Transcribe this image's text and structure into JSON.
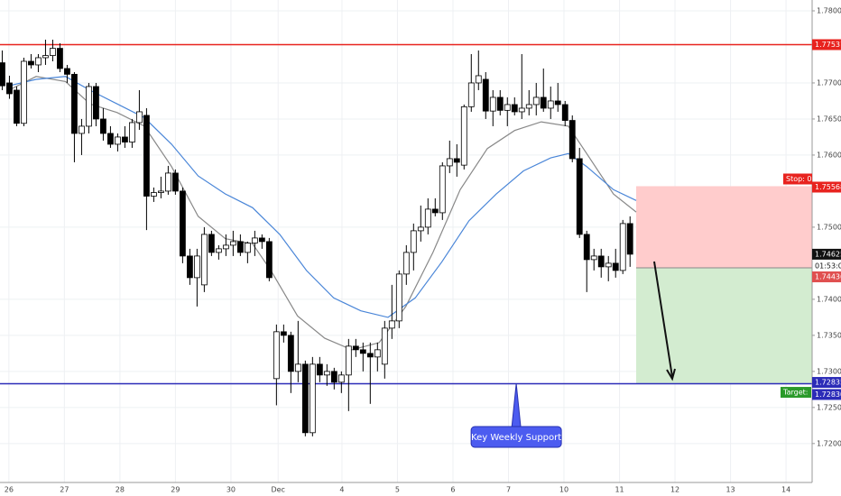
{
  "chart_data": {
    "type": "candlestick",
    "up_color": "#ffffff",
    "down_color": "#000000",
    "grid": true,
    "xlim": [
      -0.16,
      14.47
    ],
    "ylim": [
      1.7146,
      1.7815
    ],
    "xticks": [
      {
        "value": 0,
        "label": "26"
      },
      {
        "value": 1,
        "label": "27"
      },
      {
        "value": 2,
        "label": "28"
      },
      {
        "value": 3,
        "label": "29"
      },
      {
        "value": 4,
        "label": "30"
      },
      {
        "value": 4.85,
        "label": "Dec"
      },
      {
        "value": 6,
        "label": "4"
      },
      {
        "value": 7,
        "label": "5"
      },
      {
        "value": 8,
        "label": "6"
      },
      {
        "value": 9,
        "label": "7"
      },
      {
        "value": 10,
        "label": "10"
      },
      {
        "value": 11,
        "label": "11"
      },
      {
        "value": 12,
        "label": "12"
      },
      {
        "value": 13,
        "label": "13"
      },
      {
        "value": 14,
        "label": "14"
      }
    ],
    "yticks": [
      {
        "value": 1.78,
        "label": "1.78000"
      },
      {
        "value": 1.77,
        "label": "1.77000"
      },
      {
        "value": 1.765,
        "label": "1.76500"
      },
      {
        "value": 1.76,
        "label": "1.76000"
      },
      {
        "value": 1.75,
        "label": "1.75000"
      },
      {
        "value": 1.74,
        "label": "1.74000"
      },
      {
        "value": 1.735,
        "label": "1.73500"
      },
      {
        "value": 1.73,
        "label": "1.73000"
      },
      {
        "value": 1.725,
        "label": "1.72500"
      },
      {
        "value": 1.72,
        "label": "1.72000"
      }
    ],
    "x": [
      -0.12,
      0.01,
      0.14,
      0.27,
      0.4,
      0.53,
      0.66,
      0.79,
      0.92,
      1.05,
      1.18,
      1.31,
      1.44,
      1.57,
      1.7,
      1.83,
      1.96,
      2.09,
      2.22,
      2.35,
      2.48,
      2.61,
      2.74,
      2.87,
      3.0,
      3.13,
      3.26,
      3.39,
      3.52,
      3.65,
      3.78,
      3.91,
      4.04,
      4.17,
      4.3,
      4.43,
      4.56,
      4.69,
      4.82,
      4.95,
      5.08,
      5.21,
      5.34,
      5.47,
      5.6,
      5.73,
      5.86,
      5.99,
      6.12,
      6.25,
      6.38,
      6.51,
      6.64,
      6.77,
      6.9,
      7.03,
      7.16,
      7.29,
      7.42,
      7.55,
      7.68,
      7.81,
      7.94,
      8.07,
      8.2,
      8.33,
      8.46,
      8.59,
      8.72,
      8.85,
      8.98,
      9.11,
      9.24,
      9.37,
      9.5,
      9.63,
      9.76,
      9.89,
      10.02,
      10.15,
      10.28,
      10.41,
      10.54,
      10.67,
      10.8,
      10.93,
      11.06,
      11.19
    ],
    "open": [
      1.7728,
      1.77,
      1.769,
      1.7644,
      1.773,
      1.7725,
      1.7735,
      1.7738,
      1.7748,
      1.772,
      1.7712,
      1.763,
      1.764,
      1.7695,
      1.765,
      1.763,
      1.7615,
      1.7625,
      1.7618,
      1.7645,
      1.7655,
      1.7543,
      1.7548,
      1.755,
      1.7575,
      1.755,
      1.746,
      1.743,
      1.742,
      1.749,
      1.7465,
      1.747,
      1.7475,
      1.748,
      1.7465,
      1.7478,
      1.7485,
      1.748,
      1.729,
      1.7355,
      1.735,
      1.73,
      1.731,
      1.7215,
      1.731,
      1.7295,
      1.73,
      1.7285,
      1.7295,
      1.7335,
      1.733,
      1.7325,
      1.732,
      1.731,
      1.736,
      1.737,
      1.7435,
      1.7465,
      1.7495,
      1.75,
      1.7525,
      1.752,
      1.7585,
      1.7595,
      1.7586,
      1.7667,
      1.77,
      1.7705,
      1.7661,
      1.768,
      1.7662,
      1.767,
      1.766,
      1.7665,
      1.767,
      1.768,
      1.7665,
      1.7675,
      1.767,
      1.7648,
      1.7595,
      1.749,
      1.7455,
      1.746,
      1.7445,
      1.745,
      1.744,
      1.7505
    ],
    "high": [
      1.7745,
      1.771,
      1.7695,
      1.7735,
      1.774,
      1.774,
      1.776,
      1.776,
      1.7755,
      1.7725,
      1.7715,
      1.765,
      1.77,
      1.77,
      1.7665,
      1.764,
      1.763,
      1.764,
      1.765,
      1.769,
      1.7665,
      1.7555,
      1.757,
      1.7585,
      1.758,
      1.7555,
      1.747,
      1.747,
      1.75,
      1.7495,
      1.7475,
      1.749,
      1.7495,
      1.749,
      1.748,
      1.7495,
      1.749,
      1.7485,
      1.7365,
      1.7365,
      1.7355,
      1.737,
      1.7315,
      1.732,
      1.732,
      1.731,
      1.7305,
      1.73,
      1.7345,
      1.7345,
      1.734,
      1.734,
      1.734,
      1.737,
      1.742,
      1.744,
      1.7475,
      1.7505,
      1.753,
      1.754,
      1.754,
      1.759,
      1.762,
      1.7615,
      1.767,
      1.774,
      1.7745,
      1.7715,
      1.769,
      1.769,
      1.768,
      1.768,
      1.774,
      1.769,
      1.77,
      1.772,
      1.7695,
      1.77,
      1.7675,
      1.7655,
      1.761,
      1.7495,
      1.747,
      1.747,
      1.746,
      1.747,
      1.751,
      1.7515
    ],
    "low": [
      1.769,
      1.7678,
      1.764,
      1.764,
      1.772,
      1.7715,
      1.7725,
      1.773,
      1.7715,
      1.77,
      1.759,
      1.76,
      1.763,
      1.764,
      1.762,
      1.761,
      1.7605,
      1.761,
      1.761,
      1.7635,
      1.7496,
      1.7535,
      1.754,
      1.7545,
      1.7545,
      1.745,
      1.742,
      1.739,
      1.741,
      1.746,
      1.7455,
      1.746,
      1.746,
      1.746,
      1.745,
      1.746,
      1.747,
      1.7425,
      1.7253,
      1.734,
      1.727,
      1.7285,
      1.721,
      1.721,
      1.7285,
      1.728,
      1.7275,
      1.727,
      1.7245,
      1.732,
      1.73,
      1.7255,
      1.73,
      1.729,
      1.7345,
      1.736,
      1.742,
      1.744,
      1.748,
      1.749,
      1.7515,
      1.751,
      1.7575,
      1.757,
      1.758,
      1.766,
      1.769,
      1.765,
      1.764,
      1.7655,
      1.764,
      1.7655,
      1.765,
      1.7655,
      1.7655,
      1.766,
      1.765,
      1.766,
      1.764,
      1.759,
      1.7485,
      1.741,
      1.744,
      1.743,
      1.7425,
      1.743,
      1.7435,
      1.7445
    ],
    "close": [
      1.7696,
      1.7685,
      1.7644,
      1.773,
      1.7725,
      1.7735,
      1.7738,
      1.7748,
      1.772,
      1.7712,
      1.763,
      1.764,
      1.7695,
      1.765,
      1.763,
      1.7615,
      1.7625,
      1.7618,
      1.7645,
      1.766,
      1.7543,
      1.7548,
      1.755,
      1.7575,
      1.755,
      1.746,
      1.743,
      1.746,
      1.749,
      1.7465,
      1.747,
      1.7475,
      1.748,
      1.7465,
      1.7478,
      1.7485,
      1.748,
      1.743,
      1.7355,
      1.735,
      1.73,
      1.731,
      1.7215,
      1.731,
      1.7295,
      1.73,
      1.7285,
      1.7295,
      1.7335,
      1.733,
      1.7325,
      1.732,
      1.733,
      1.736,
      1.737,
      1.7435,
      1.7465,
      1.7495,
      1.75,
      1.7525,
      1.752,
      1.7585,
      1.7595,
      1.759,
      1.7667,
      1.77,
      1.771,
      1.7661,
      1.768,
      1.7662,
      1.767,
      1.766,
      1.7665,
      1.767,
      1.768,
      1.7665,
      1.7675,
      1.767,
      1.7648,
      1.7595,
      1.749,
      1.7455,
      1.746,
      1.7445,
      1.745,
      1.744,
      1.7505,
      1.74625
    ],
    "moving_averages": [
      {
        "color": "#888888",
        "x": [
          0.0,
          0.49,
          1.02,
          1.46,
          1.95,
          2.44,
          2.93,
          3.41,
          3.9,
          4.39,
          4.72,
          5.2,
          5.69,
          6.18,
          6.67,
          7.15,
          7.64,
          8.13,
          8.62,
          9.11,
          9.59,
          10.08,
          10.41,
          10.89,
          11.3
        ],
        "values": [
          1.769,
          1.7709,
          1.7702,
          1.7671,
          1.7659,
          1.764,
          1.7584,
          1.7515,
          1.7484,
          1.7477,
          1.744,
          1.7377,
          1.7346,
          1.733,
          1.734,
          1.739,
          1.7465,
          1.7552,
          1.7609,
          1.7634,
          1.7646,
          1.764,
          1.7602,
          1.7546,
          1.7521
        ]
      },
      {
        "color": "#4a86d8",
        "x": [
          0.0,
          0.49,
          1.02,
          1.46,
          1.95,
          2.44,
          2.93,
          3.41,
          3.9,
          4.39,
          4.88,
          5.36,
          5.85,
          6.34,
          6.83,
          7.32,
          7.8,
          8.29,
          8.78,
          9.27,
          9.76,
          10.08,
          10.41,
          10.89,
          11.3
        ],
        "values": [
          1.7696,
          1.7705,
          1.7709,
          1.769,
          1.7671,
          1.7652,
          1.7615,
          1.7571,
          1.7546,
          1.7527,
          1.749,
          1.744,
          1.7402,
          1.7384,
          1.7375,
          1.7402,
          1.7452,
          1.7509,
          1.7546,
          1.7578,
          1.7596,
          1.7602,
          1.7584,
          1.7552,
          1.7537
        ]
      }
    ],
    "resistance": {
      "value": 1.77531,
      "color": "#e8231f"
    },
    "support": {
      "value": 1.7283,
      "label": "1.72830",
      "color": "#2c2cb8"
    },
    "last_price": 1.74625,
    "countdown": "01:53:04",
    "trade": {
      "start_x": 11.3,
      "stop_label": "Stop: 0",
      "stop": 1.75568,
      "entry": 1.74436,
      "target_label": "Target:",
      "target": 1.72835,
      "stop_color": "#ffcccc",
      "target_color": "#d3ecd0"
    },
    "annotation": {
      "text": "Key Weekly Support",
      "x": 9.14
    }
  }
}
